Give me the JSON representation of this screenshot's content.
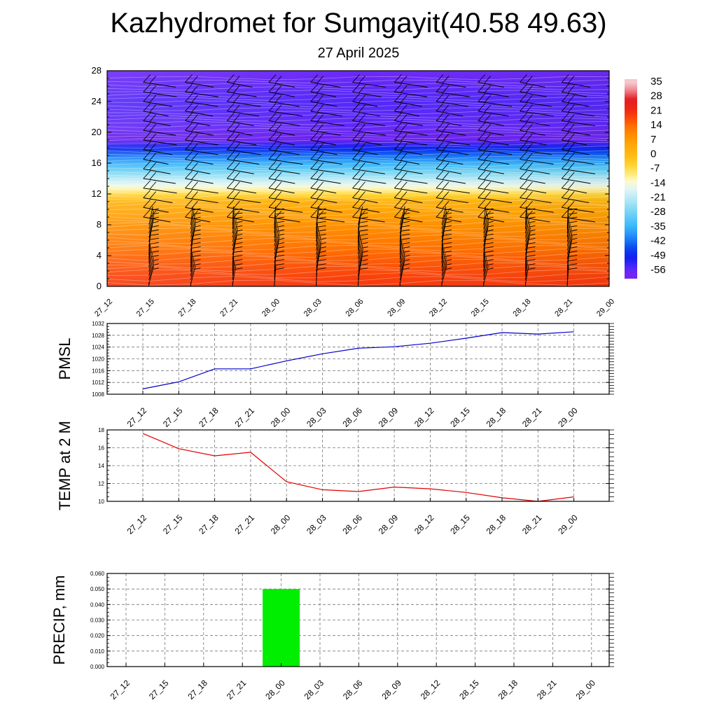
{
  "title": "Kazhydromet for Sumgayit(40.58 49.63)",
  "subtitle": "27 April 2025",
  "colors": {
    "pmsl_line": "#0000cc",
    "temp_line": "#e00000",
    "precip_bar": "#00ee00"
  },
  "chart_data": [
    {
      "type": "heatmap",
      "name": "vertical-cross-section",
      "x": [
        "27_12",
        "27_15",
        "27_18",
        "27_21",
        "28_00",
        "28_03",
        "28_06",
        "28_09",
        "28_12",
        "28_15",
        "28_18",
        "28_21",
        "29_00"
      ],
      "y_ticks": [
        0,
        4,
        8,
        12,
        16,
        20,
        24,
        28
      ],
      "ylim": [
        0,
        28
      ],
      "colorbar_labels": [
        "35",
        "28",
        "21",
        "14",
        "7",
        "0",
        "-7",
        "-14",
        "-21",
        "-28",
        "-35",
        "-42",
        "-49",
        "-56"
      ],
      "temperature_profile": [
        {
          "y": 0,
          "value": 21
        },
        {
          "y": 4,
          "value": 16
        },
        {
          "y": 8,
          "value": 10
        },
        {
          "y": 11,
          "value": 3
        },
        {
          "y": 12.5,
          "value": -10
        },
        {
          "y": 14,
          "value": -21
        },
        {
          "y": 16,
          "value": -35
        },
        {
          "y": 18,
          "value": -49
        },
        {
          "y": 19,
          "value": -58
        },
        {
          "y": 21,
          "value": -56
        },
        {
          "y": 24,
          "value": -55
        },
        {
          "y": 28,
          "value": -57
        }
      ],
      "wind_barbs": true
    },
    {
      "type": "line",
      "name": "pmsl",
      "ylabel": "PMSL",
      "x": [
        "27_12",
        "27_15",
        "27_18",
        "27_21",
        "28_00",
        "28_03",
        "28_06",
        "28_09",
        "28_12",
        "28_15",
        "28_18",
        "28_21",
        "29_00"
      ],
      "values": [
        1009.8,
        1012.2,
        1016.6,
        1016.6,
        1019.3,
        1021.7,
        1023.6,
        1024.1,
        1025.3,
        1027.0,
        1028.9,
        1028.4,
        1029.2
      ],
      "yticks": [
        1008,
        1012,
        1016,
        1020,
        1024,
        1028,
        1032
      ],
      "ylim": [
        1008,
        1032
      ],
      "grid": true
    },
    {
      "type": "line",
      "name": "temp-2m",
      "ylabel": "TEMP at 2 M",
      "x": [
        "27_12",
        "27_15",
        "27_18",
        "27_21",
        "28_00",
        "28_03",
        "28_06",
        "28_09",
        "28_12",
        "28_15",
        "28_18",
        "28_21",
        "29_00"
      ],
      "values": [
        17.6,
        15.9,
        15.1,
        15.5,
        12.2,
        11.3,
        11.1,
        11.6,
        11.4,
        11.0,
        10.4,
        10.0,
        10.5
      ],
      "yticks": [
        10,
        12,
        14,
        16,
        18
      ],
      "ylim": [
        10,
        18
      ],
      "grid": true
    },
    {
      "type": "bar",
      "name": "precip",
      "ylabel": "PRECIP, mm",
      "x": [
        "27_12",
        "27_15",
        "27_18",
        "27_21",
        "28_00",
        "28_03",
        "28_06",
        "28_09",
        "28_12",
        "28_15",
        "28_18",
        "28_21",
        "29_00"
      ],
      "values": [
        0,
        0,
        0,
        0,
        0.05,
        0,
        0,
        0,
        0,
        0,
        0,
        0,
        0
      ],
      "yticks": [
        "0.000",
        "0.010",
        "0.020",
        "0.030",
        "0.040",
        "0.050",
        "0.060"
      ],
      "ylim": [
        0,
        0.06
      ],
      "grid": true
    }
  ]
}
